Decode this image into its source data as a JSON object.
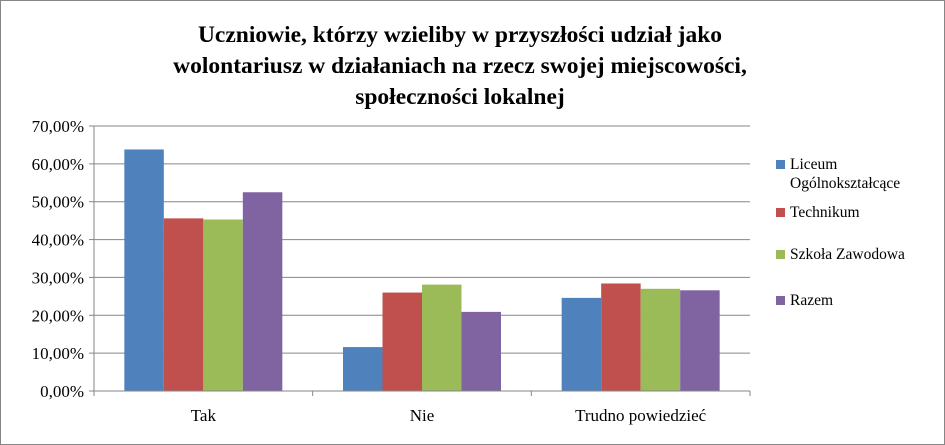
{
  "chart_data": {
    "type": "bar",
    "title_lines": [
      "Uczniowie, którzy wzieliby  w przyszłości udział jako",
      "wolontariusz w działaniach na rzecz swojej miejscowości,",
      "społeczności lokalnej"
    ],
    "categories": [
      "Tak",
      "Nie",
      "Trudno powiedzieć"
    ],
    "series": [
      {
        "name": "Liceum Ogólnokształcące",
        "color": "#4F81BD",
        "values": [
          63.8,
          11.6,
          24.6
        ]
      },
      {
        "name": "Technikum",
        "color": "#C0504D",
        "values": [
          45.6,
          26.0,
          28.4
        ]
      },
      {
        "name": "Szkoła Zawodowa",
        "color": "#9BBB59",
        "values": [
          45.3,
          28.1,
          27.0
        ]
      },
      {
        "name": "Razem",
        "color": "#8064A2",
        "values": [
          52.5,
          20.9,
          26.6
        ]
      }
    ],
    "ylim": [
      0,
      70
    ],
    "yticks": [
      0,
      10,
      20,
      30,
      40,
      50,
      60,
      70
    ],
    "ytick_labels": [
      "0,00%",
      "10,00%",
      "20,00%",
      "30,00%",
      "40,00%",
      "50,00%",
      "60,00%",
      "70,00%"
    ],
    "grid": true,
    "legend_position": "right"
  }
}
